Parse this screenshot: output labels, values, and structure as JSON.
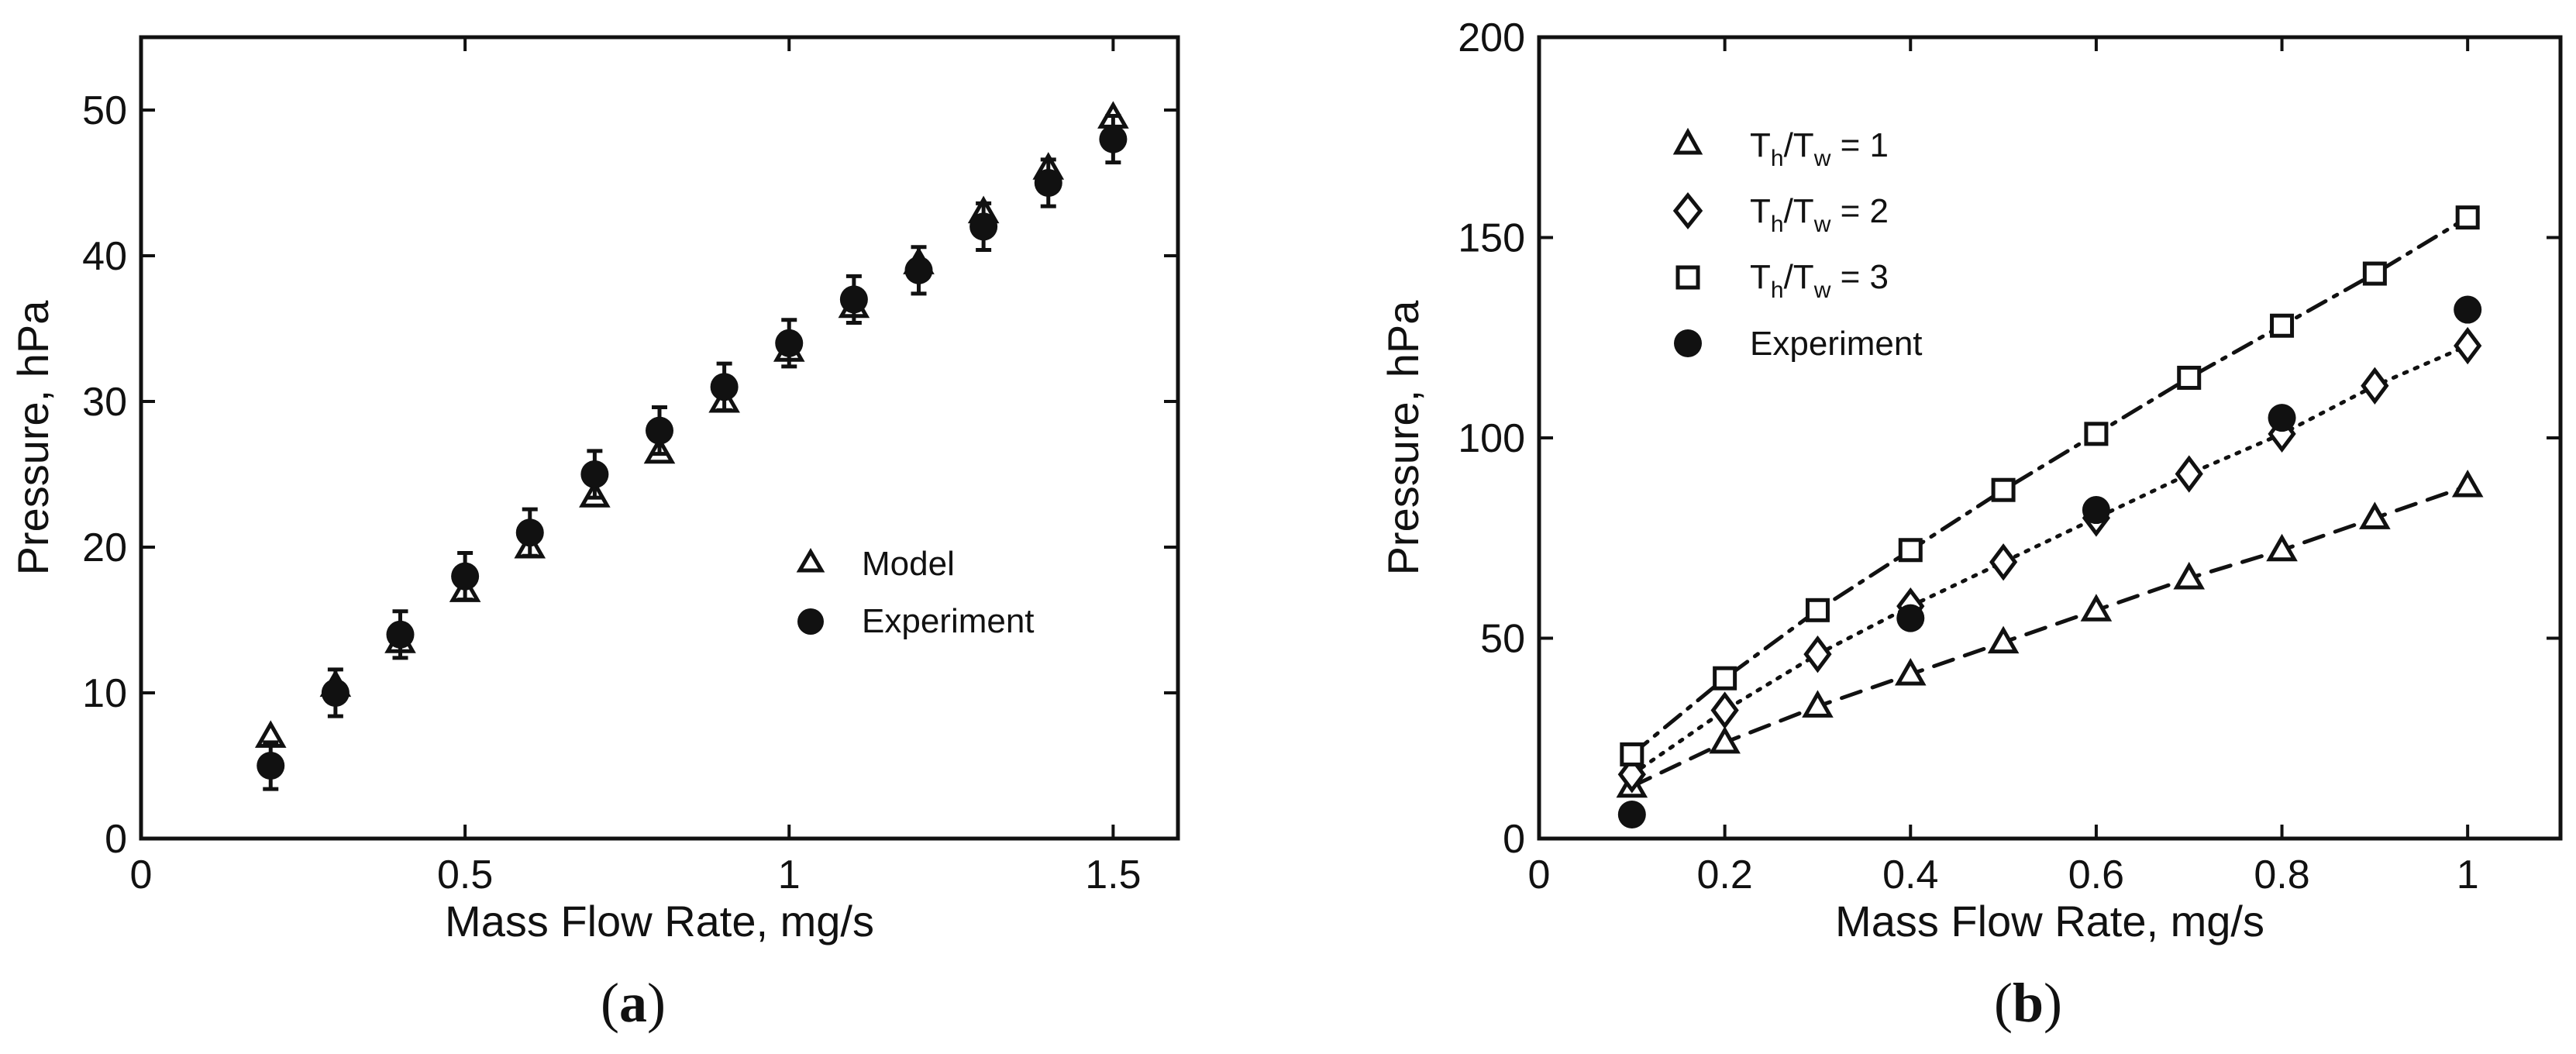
{
  "chart_data": [
    {
      "type": "scatter",
      "panel_label": "a",
      "xlabel": "Mass Flow Rate, mg/s",
      "ylabel": "Pressure, hPa",
      "xlim": [
        0,
        1.6
      ],
      "ylim": [
        0,
        55
      ],
      "xticks": [
        0,
        0.5,
        1,
        1.5
      ],
      "xtick_labels": [
        "0",
        "0.5",
        "1",
        "1.5"
      ],
      "yticks": [
        0,
        10,
        20,
        30,
        40,
        50
      ],
      "ytick_labels": [
        "0",
        "10",
        "20",
        "30",
        "40",
        "50"
      ],
      "legend_position": "center-right",
      "series": [
        {
          "name": "Model",
          "marker": "triangle",
          "x": [
            0.2,
            0.3,
            0.4,
            0.5,
            0.6,
            0.7,
            0.8,
            0.9,
            1.0,
            1.1,
            1.2,
            1.3,
            1.4,
            1.5
          ],
          "y": [
            7,
            10.5,
            13.5,
            17,
            20,
            23.5,
            26.5,
            30,
            33.5,
            36.5,
            39.5,
            43,
            46,
            49.5
          ]
        },
        {
          "name": "Experiment",
          "marker": "filled-circle",
          "x": [
            0.2,
            0.3,
            0.4,
            0.5,
            0.6,
            0.7,
            0.8,
            0.9,
            1.0,
            1.1,
            1.2,
            1.3,
            1.4,
            1.5
          ],
          "y": [
            5,
            10,
            14,
            18,
            21,
            25,
            28,
            31,
            34,
            37,
            39,
            42,
            45,
            48
          ],
          "error": [
            1.6,
            1.6,
            1.6,
            1.6,
            1.6,
            1.6,
            1.6,
            1.6,
            1.6,
            1.6,
            1.6,
            1.6,
            1.6,
            1.6
          ]
        }
      ]
    },
    {
      "type": "line",
      "panel_label": "b",
      "xlabel": "Mass Flow Rate, mg/s",
      "ylabel": "Pressure, hPa",
      "xlim": [
        0,
        1.1
      ],
      "ylim": [
        0,
        200
      ],
      "xticks": [
        0,
        0.2,
        0.4,
        0.6,
        0.8,
        1
      ],
      "xtick_labels": [
        "0",
        "0.2",
        "0.4",
        "0.6",
        "0.8",
        "1"
      ],
      "yticks": [
        0,
        50,
        100,
        150,
        200
      ],
      "ytick_labels": [
        "0",
        "50",
        "100",
        "150",
        "200"
      ],
      "legend_position": "top-left",
      "series": [
        {
          "name": "Th/Tw = 1",
          "label_parts": [
            "T",
            "h",
            "/T",
            "w",
            " = 1"
          ],
          "marker": "triangle",
          "line": "dashed",
          "x": [
            0.1,
            0.2,
            0.3,
            0.4,
            0.5,
            0.6,
            0.7,
            0.8,
            0.9,
            1.0
          ],
          "y": [
            13,
            24,
            33,
            41,
            49,
            57,
            65,
            72,
            80,
            88
          ]
        },
        {
          "name": "Th/Tw = 2",
          "label_parts": [
            "T",
            "h",
            "/T",
            "w",
            " = 2"
          ],
          "marker": "diamond",
          "line": "dotted",
          "x": [
            0.1,
            0.2,
            0.3,
            0.4,
            0.5,
            0.6,
            0.7,
            0.8,
            0.9,
            1.0
          ],
          "y": [
            16,
            32,
            46,
            58,
            69,
            80,
            91,
            101,
            113,
            123
          ]
        },
        {
          "name": "Th/Tw = 3",
          "label_parts": [
            "T",
            "h",
            "/T",
            "w",
            " = 3"
          ],
          "marker": "square",
          "line": "dashdot",
          "x": [
            0.1,
            0.2,
            0.3,
            0.4,
            0.5,
            0.6,
            0.7,
            0.8,
            0.9,
            1.0
          ],
          "y": [
            21,
            40,
            57,
            72,
            87,
            101,
            115,
            128,
            141,
            155
          ]
        },
        {
          "name": "Experiment",
          "label_parts": [
            "Experiment"
          ],
          "marker": "filled-circle",
          "line": "none",
          "x": [
            0.1,
            0.4,
            0.6,
            0.8,
            1.0
          ],
          "y": [
            6,
            55,
            82,
            105,
            132
          ]
        }
      ]
    }
  ],
  "captions": [
    {
      "open": "(",
      "letter": "a",
      "close": ")"
    },
    {
      "open": "(",
      "letter": "b",
      "close": ")"
    }
  ]
}
